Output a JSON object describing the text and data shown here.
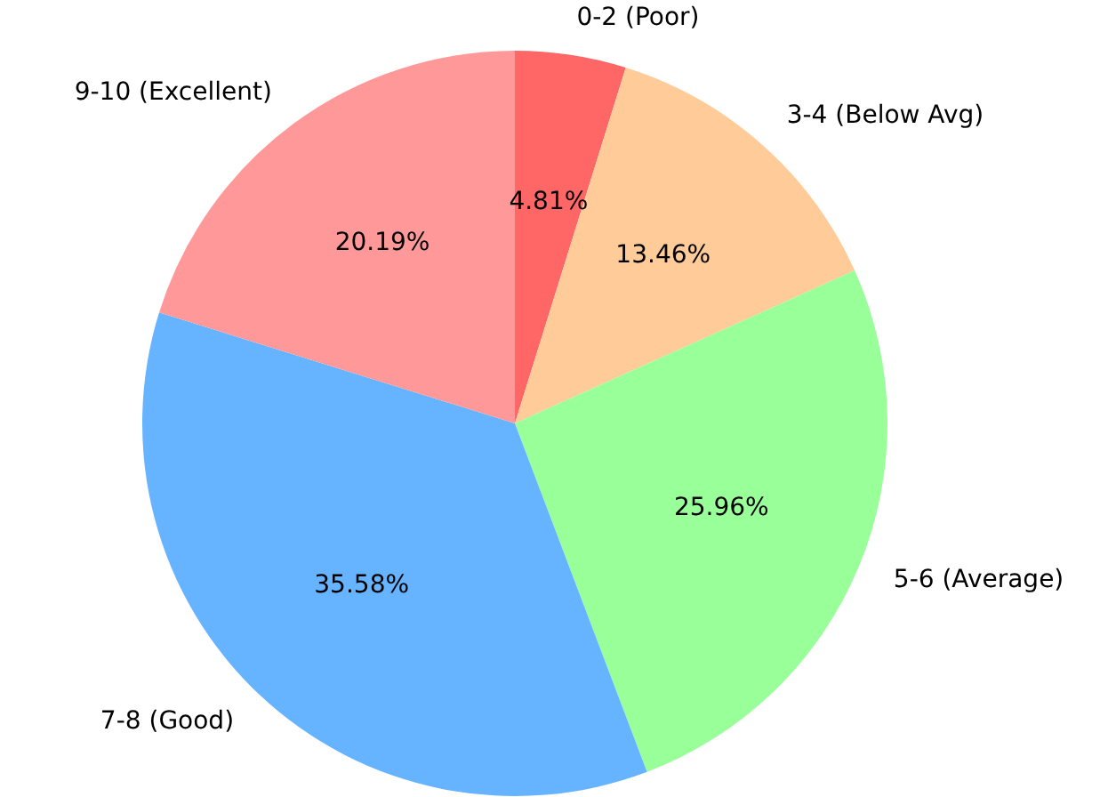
{
  "chart_data": {
    "type": "pie",
    "categories": [
      "0-2 (Poor)",
      "3-4 (Below Avg)",
      "5-6 (Average)",
      "7-8 (Good)",
      "9-10 (Excellent)"
    ],
    "values": [
      4.81,
      13.46,
      25.96,
      35.58,
      20.19
    ],
    "colors": [
      "#ff6666",
      "#ffcc99",
      "#99ff99",
      "#66b3ff",
      "#ff9999"
    ],
    "value_labels": [
      "4.81%",
      "13.46%",
      "25.96%",
      "35.58%",
      "20.19%"
    ],
    "legend": false
  }
}
